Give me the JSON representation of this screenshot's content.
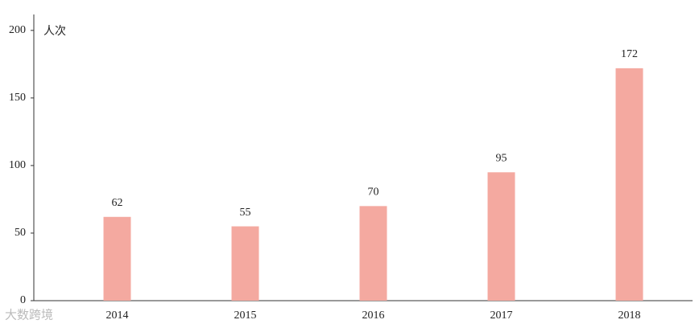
{
  "chart_data": {
    "type": "bar",
    "y_unit_label": "人次",
    "categories": [
      "2014",
      "2015",
      "2016",
      "2017",
      "2018"
    ],
    "values": [
      62,
      55,
      70,
      95,
      172
    ],
    "color": "#f4a9a0",
    "ylim": [
      0,
      210
    ],
    "yticks": [
      0,
      50,
      100,
      150,
      200
    ],
    "grid": false,
    "watermark": "大数跨境"
  }
}
